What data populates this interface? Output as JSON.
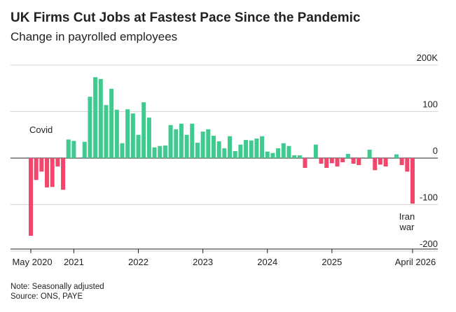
{
  "chart_data": {
    "type": "bar",
    "title": "UK Firms Cut Jobs at Fastest Pace Since the Pandemic",
    "subtitle": "Change in payrolled employees",
    "categories": [
      "May 2020",
      null,
      null,
      null,
      null,
      null,
      null,
      null,
      "2021",
      null,
      null,
      null,
      null,
      null,
      null,
      null,
      null,
      null,
      null,
      null,
      "2022",
      null,
      null,
      null,
      null,
      null,
      null,
      null,
      null,
      null,
      null,
      null,
      "2023",
      null,
      null,
      null,
      null,
      null,
      null,
      null,
      null,
      null,
      null,
      null,
      "2024",
      null,
      null,
      null,
      null,
      null,
      null,
      null,
      null,
      null,
      null,
      null,
      "2025",
      null,
      null,
      null,
      null,
      null,
      null,
      null,
      null,
      null,
      null,
      null,
      null,
      null,
      null,
      "April 2026"
    ],
    "values": [
      -167,
      -47,
      -29,
      -63,
      -62,
      -18,
      -68,
      40,
      37,
      0,
      35,
      132,
      174,
      170,
      114,
      149,
      104,
      32,
      105,
      96,
      50,
      120,
      87,
      23,
      26,
      27,
      71,
      62,
      74,
      50,
      74,
      33,
      57,
      62,
      48,
      36,
      21,
      47,
      15,
      29,
      39,
      38,
      42,
      47,
      14,
      11,
      21,
      32,
      26,
      6,
      6,
      -21,
      0,
      29,
      -12,
      -21,
      -11,
      -18,
      -9,
      9,
      -12,
      -15,
      0,
      18,
      -26,
      -14,
      -18,
      0,
      8,
      -15,
      -29,
      -98
    ],
    "positive_color": "#3fcb8f",
    "negative_color": "#f2466c",
    "ylim": [
      -200,
      200
    ],
    "yticks": [
      {
        "value": 200,
        "label": "200K"
      },
      100,
      0,
      -100,
      -200
    ],
    "grid": true,
    "annotations": [
      {
        "text": "Covid",
        "index": 0
      },
      {
        "text": "Iran\nwar",
        "index": 71
      }
    ],
    "notes": [
      "Note: Seasonally adjusted",
      "Source: ONS, PAYE"
    ]
  }
}
